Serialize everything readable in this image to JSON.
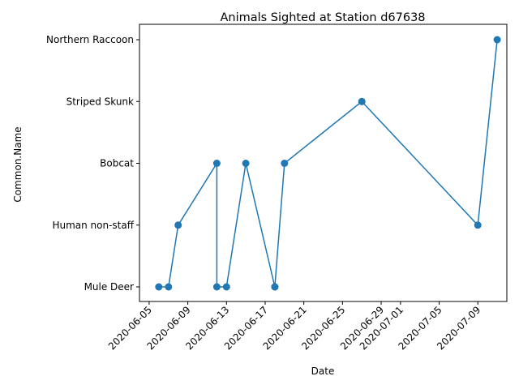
{
  "chart_data": {
    "type": "line",
    "title": "Animals Sighted at Station d67638",
    "xlabel": "Date",
    "ylabel": "Common.Name",
    "categories_y": [
      "Mule Deer",
      "Human non-staff",
      "Bobcat",
      "Striped Skunk",
      "Northern Raccoon"
    ],
    "x_ticks": [
      "2020-06-05",
      "2020-06-09",
      "2020-06-13",
      "2020-06-17",
      "2020-06-21",
      "2020-06-25",
      "2020-06-29",
      "2020-07-01",
      "2020-07-05",
      "2020-07-09"
    ],
    "xlim": [
      "2020-06-04",
      "2020-07-12"
    ],
    "series": [
      {
        "color": "#1f77b4",
        "marker": "circle",
        "points": [
          {
            "x": "2020-06-06",
            "y": "Mule Deer"
          },
          {
            "x": "2020-06-07",
            "y": "Mule Deer"
          },
          {
            "x": "2020-06-08",
            "y": "Human non-staff"
          },
          {
            "x": "2020-06-12",
            "y": "Bobcat"
          },
          {
            "x": "2020-06-12",
            "y": "Mule Deer"
          },
          {
            "x": "2020-06-13",
            "y": "Mule Deer"
          },
          {
            "x": "2020-06-15",
            "y": "Bobcat"
          },
          {
            "x": "2020-06-18",
            "y": "Mule Deer"
          },
          {
            "x": "2020-06-18",
            "y": "Mule Deer"
          },
          {
            "x": "2020-06-19",
            "y": "Bobcat"
          },
          {
            "x": "2020-06-27",
            "y": "Striped Skunk"
          },
          {
            "x": "2020-07-09",
            "y": "Human non-staff"
          },
          {
            "x": "2020-07-11",
            "y": "Northern Raccoon"
          }
        ]
      }
    ],
    "grid": false,
    "legend": "none"
  }
}
